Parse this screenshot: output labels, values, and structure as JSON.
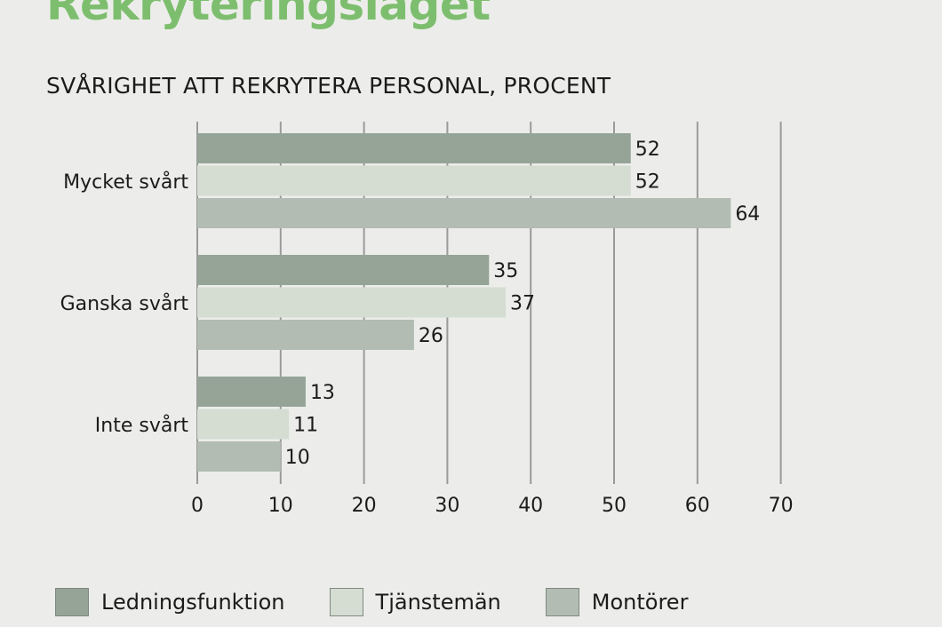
{
  "heading": "Rekryteringsläget",
  "chart_data": {
    "type": "bar",
    "orientation": "horizontal",
    "title": "SVÅRIGHET ATT REKRYTERA PERSONAL, PROCENT",
    "categories": [
      "Mycket svårt",
      "Ganska svårt",
      "Inte svårt"
    ],
    "series": [
      {
        "name": "Ledningsfunktion",
        "color": "#95a497",
        "values": [
          52,
          35,
          13
        ]
      },
      {
        "name": "Tjänstemän",
        "color": "#d5ddd3",
        "values": [
          52,
          37,
          11
        ]
      },
      {
        "name": "Montörer",
        "color": "#b2bcb2",
        "values": [
          64,
          26,
          10
        ]
      }
    ],
    "xticks": [
      0,
      10,
      20,
      30,
      40,
      50,
      60,
      70
    ],
    "xlim": [
      0,
      70
    ],
    "grid": true,
    "legend": "bottom"
  }
}
